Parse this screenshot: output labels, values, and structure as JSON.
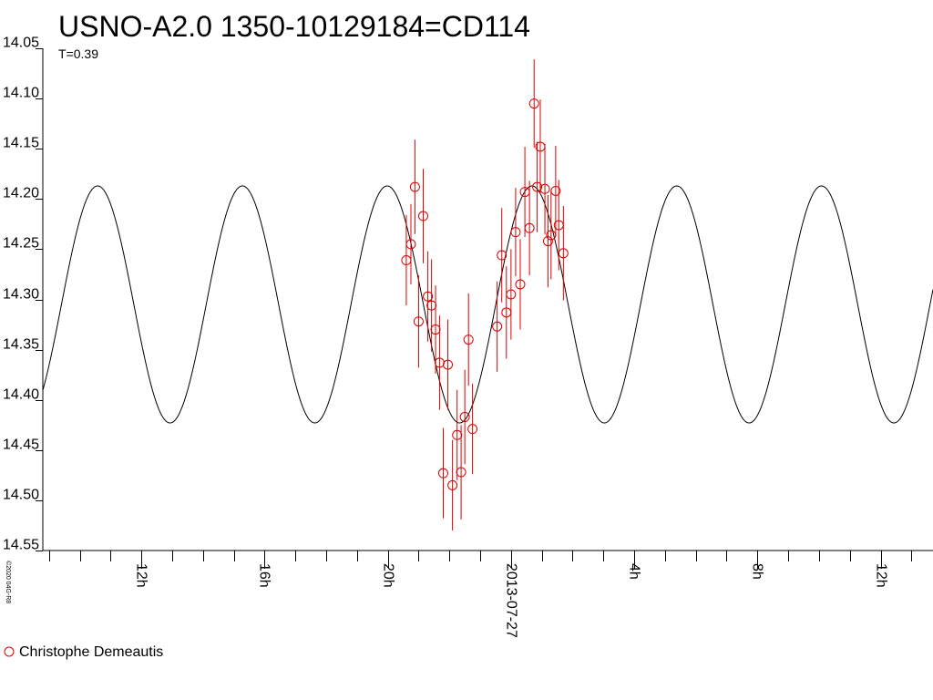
{
  "chart_data": {
    "type": "scatter",
    "title": "USNO-A2.0 1350-10129184=CD114",
    "subtitle": "T=0.39",
    "credit": "©2020 04G-R8",
    "y_axis": {
      "range": [
        14.05,
        14.55
      ],
      "inverted": true,
      "ticks": [
        "14.05",
        "14.10",
        "14.15",
        "14.20",
        "14.25",
        "14.30",
        "14.35",
        "14.40",
        "14.45",
        "14.50",
        "14.55"
      ]
    },
    "x_axis": {
      "unit": "hours relative to 2013-07-27 00:00",
      "range": [
        -15.2,
        13.7
      ],
      "major_ticks": [
        {
          "x": -12,
          "label": "12h"
        },
        {
          "x": -8,
          "label": "16h"
        },
        {
          "x": -4,
          "label": "20h"
        },
        {
          "x": 0,
          "label": "2013-07-27"
        },
        {
          "x": 4,
          "label": "4h"
        },
        {
          "x": 8,
          "label": "8h"
        },
        {
          "x": 12,
          "label": "12h"
        }
      ]
    },
    "model_curve": {
      "period_hours": 4.7,
      "mean_mag": 14.305,
      "amplitude_mag": 0.118,
      "max_brightness_at": 0.68
    },
    "series": [
      {
        "name": "Christophe Demeautis",
        "color": "#dd0000",
        "marker": "open-circle",
        "points": [
          {
            "x": -3.4,
            "mag": 14.261,
            "err": 0.045
          },
          {
            "x": -3.25,
            "mag": 14.245,
            "err": 0.04
          },
          {
            "x": -3.12,
            "mag": 14.188,
            "err": 0.047
          },
          {
            "x": -3.0,
            "mag": 14.322,
            "err": 0.046
          },
          {
            "x": -2.85,
            "mag": 14.217,
            "err": 0.047
          },
          {
            "x": -2.7,
            "mag": 14.297,
            "err": 0.045
          },
          {
            "x": -2.58,
            "mag": 14.306,
            "err": 0.046
          },
          {
            "x": -2.45,
            "mag": 14.33,
            "err": 0.044
          },
          {
            "x": -2.32,
            "mag": 14.363,
            "err": 0.047
          },
          {
            "x": -2.2,
            "mag": 14.473,
            "err": 0.045
          },
          {
            "x": -2.05,
            "mag": 14.365,
            "err": 0.045
          },
          {
            "x": -1.9,
            "mag": 14.485,
            "err": 0.045
          },
          {
            "x": -1.75,
            "mag": 14.435,
            "err": 0.045
          },
          {
            "x": -1.62,
            "mag": 14.472,
            "err": 0.047
          },
          {
            "x": -1.5,
            "mag": 14.417,
            "err": 0.047
          },
          {
            "x": -1.38,
            "mag": 14.34,
            "err": 0.046
          },
          {
            "x": -1.25,
            "mag": 14.429,
            "err": 0.045
          },
          {
            "x": -0.45,
            "mag": 14.327,
            "err": 0.045
          },
          {
            "x": -0.3,
            "mag": 14.256,
            "err": 0.047
          },
          {
            "x": -0.15,
            "mag": 14.313,
            "err": 0.046
          },
          {
            "x": 0.0,
            "mag": 14.295,
            "err": 0.045
          },
          {
            "x": 0.15,
            "mag": 14.233,
            "err": 0.044
          },
          {
            "x": 0.3,
            "mag": 14.285,
            "err": 0.045
          },
          {
            "x": 0.45,
            "mag": 14.193,
            "err": 0.045
          },
          {
            "x": 0.6,
            "mag": 14.229,
            "err": 0.047
          },
          {
            "x": 0.75,
            "mag": 14.105,
            "err": 0.044
          },
          {
            "x": 0.85,
            "mag": 14.188,
            "err": 0.045
          },
          {
            "x": 0.95,
            "mag": 14.148,
            "err": 0.047
          },
          {
            "x": 1.1,
            "mag": 14.19,
            "err": 0.045
          },
          {
            "x": 1.2,
            "mag": 14.242,
            "err": 0.046
          },
          {
            "x": 1.3,
            "mag": 14.236,
            "err": 0.044
          },
          {
            "x": 1.45,
            "mag": 14.192,
            "err": 0.045
          },
          {
            "x": 1.55,
            "mag": 14.226,
            "err": 0.045
          },
          {
            "x": 1.7,
            "mag": 14.254,
            "err": 0.047
          }
        ]
      }
    ]
  },
  "legend": {
    "label": "Christophe Demeautis"
  }
}
